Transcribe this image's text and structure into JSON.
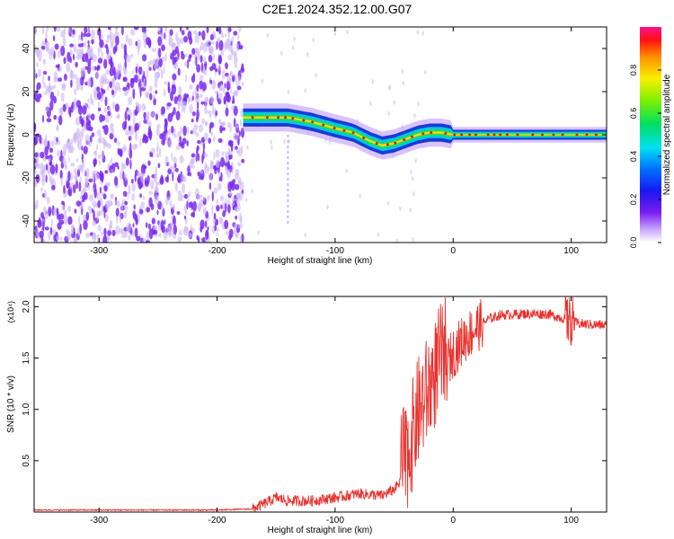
{
  "title": "C2E1.2024.352.12.00.G07",
  "colors": {
    "snr_line": "#e8322e",
    "signal_core": "#e01b1b",
    "signal_mid": "#22d86a",
    "signal_outer": "#1a3bd6",
    "scatter_purple": "#7b2cf0",
    "scatter_light": "#cdb6f5"
  },
  "chart_data": [
    {
      "type": "heatmap",
      "title": "C2E1.2024.352.12.00.G07",
      "xlabel": "Height of straight line (km)",
      "ylabel": "Frequency (Hz)",
      "xlim": [
        -355,
        130
      ],
      "ylim": [
        -50,
        50
      ],
      "x_ticks": [
        -300,
        -200,
        -100,
        0,
        100
      ],
      "y_ticks": [
        -40,
        -20,
        0,
        20,
        40
      ],
      "noise_region_x": [
        -355,
        -178
      ],
      "signal_trace": {
        "x": [
          -178,
          -160,
          -140,
          -120,
          -100,
          -85,
          -70,
          -60,
          -50,
          -40,
          -30,
          -20,
          -10,
          0,
          20,
          40,
          60,
          80,
          100,
          130
        ],
        "frequency_hz": [
          8,
          8,
          8,
          6,
          3,
          1,
          -3,
          -5,
          -4,
          -2,
          0,
          1,
          1,
          0,
          0,
          0,
          0,
          0,
          0,
          0
        ]
      },
      "colorbar": {
        "label": "Normalized spectral amplitude",
        "range": [
          0,
          1
        ],
        "ticks": [
          0.0,
          0.2,
          0.4,
          0.6,
          0.8
        ]
      }
    },
    {
      "type": "line",
      "xlabel": "Height of straight line (km)",
      "ylabel": "SNR (10 * v/v)",
      "y_multiplier": "(x10⁴)",
      "xlim": [
        -355,
        130
      ],
      "ylim": [
        0,
        2.1
      ],
      "x_ticks": [
        -300,
        -200,
        -100,
        0,
        100
      ],
      "y_ticks": [
        0.5,
        1.0,
        1.5,
        2.0
      ],
      "series": [
        {
          "x": [
            -355,
            -300,
            -250,
            -200,
            -170,
            -160,
            -150,
            -140,
            -120,
            -100,
            -80,
            -60,
            -50,
            -40,
            -35,
            -30,
            -20,
            -10,
            0,
            10,
            20,
            30,
            40,
            60,
            80,
            95,
            100,
            105,
            110,
            130
          ],
          "y": [
            0.02,
            0.02,
            0.02,
            0.02,
            0.03,
            0.08,
            0.14,
            0.11,
            0.11,
            0.14,
            0.18,
            0.16,
            0.22,
            0.35,
            0.55,
            0.8,
            1.05,
            1.35,
            1.55,
            1.7,
            1.8,
            1.88,
            1.92,
            1.93,
            1.93,
            1.88,
            1.86,
            1.84,
            1.83,
            1.82
          ]
        }
      ]
    }
  ]
}
